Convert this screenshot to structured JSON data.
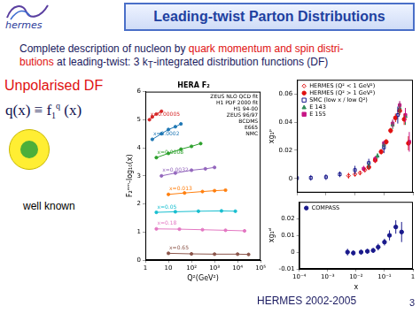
{
  "slide": {
    "logo": "hermes",
    "title": "Leading-twist Parton Distributions",
    "intro": [
      [
        "Complete description of nucleon by ",
        "quark momentum and spin distri-"
      ],
      [
        "butions",
        " at leading-twist: 3 k",
        "T",
        "-integrated distribution functions (DF)"
      ]
    ],
    "section": "Unpolarised DF",
    "formula": [
      "q(x) ≡ f",
      "1",
      "q",
      " (x)"
    ],
    "caption": "well known",
    "footer": "HERMES 2002-2005",
    "page": 3
  },
  "chart_data": [
    {
      "type": "line",
      "title": "HERA F₂",
      "x_label": "Q²(GeV²)",
      "y_label": "F₂ᵉᵐ-log₁₀(x)",
      "log": "x",
      "grid": false,
      "xlim": [
        1,
        100000
      ],
      "xticks": [
        1,
        10,
        {
          "value": 100,
          "label": "10²"
        },
        {
          "value": 1000,
          "label": "10³"
        },
        {
          "value": 10000,
          "label": "10⁴"
        },
        {
          "value": 100000,
          "label": "10⁵"
        }
      ],
      "ylim": [
        0,
        6
      ],
      "yticks": [
        0,
        1,
        2,
        3,
        4,
        5,
        6
      ],
      "annotations": [
        "ZEUS NLO QCD fit",
        "H1 PDF 2000 fit",
        "H1 94-00",
        "ZEUS 96/97",
        "BCDMS",
        "E665",
        "NMC"
      ],
      "series": [
        {
          "name": "x=0.00005",
          "color": "#d62728",
          "marker": "circle",
          "x": [
            1.5,
            2,
            3,
            5
          ],
          "values": [
            5.0,
            5.1,
            5.2,
            5.3
          ]
        },
        {
          "name": "x=0.0002",
          "color": "#1f77b4",
          "marker": "circle",
          "x": [
            2,
            5,
            10,
            20,
            35
          ],
          "values": [
            4.3,
            4.5,
            4.65,
            4.75,
            4.85
          ]
        },
        {
          "name": "x=0.0008",
          "color": "#2ca02c",
          "marker": "circle",
          "x": [
            3,
            10,
            35,
            100,
            250
          ],
          "values": [
            3.65,
            3.8,
            3.95,
            4.05,
            4.15
          ]
        },
        {
          "name": "x=0.0032",
          "color": "#9467bd",
          "marker": "circle",
          "x": [
            5,
            20,
            100,
            400,
            1000
          ],
          "values": [
            3.0,
            3.1,
            3.2,
            3.25,
            3.3
          ]
        },
        {
          "name": "x=0.013",
          "color": "#ff7f0e",
          "marker": "circle",
          "x": [
            10,
            50,
            300,
            1000,
            3000
          ],
          "values": [
            2.34,
            2.39,
            2.44,
            2.47,
            2.49
          ]
        },
        {
          "name": "x=0.05",
          "color": "#17becf",
          "marker": "circle",
          "x": [
            3,
            20,
            200,
            2000,
            8000
          ],
          "values": [
            1.7,
            1.72,
            1.74,
            1.75,
            1.74
          ]
        },
        {
          "name": "x=0.18",
          "color": "#e377c2",
          "marker": "circle",
          "x": [
            3,
            30,
            300,
            3000,
            20000
          ],
          "values": [
            1.11,
            1.1,
            1.08,
            1.06,
            1.04
          ]
        },
        {
          "name": "x=0.65",
          "color": "#8c564b",
          "marker": "circle",
          "x": [
            10,
            100,
            1000,
            10000,
            30000
          ],
          "values": [
            0.24,
            0.22,
            0.21,
            0.21,
            0.2
          ]
        }
      ]
    },
    {
      "type": "scatter",
      "y_label": "xg₁ᵖ",
      "log": "x",
      "grid": false,
      "tick_labels": "y",
      "legend": "upper left",
      "xlim": [
        0.0001,
        1
      ],
      "xticks": [
        {
          "value": 0.0001,
          "label": "10⁻⁴"
        },
        {
          "value": 0.001,
          "label": "10⁻³"
        },
        {
          "value": 0.01,
          "label": "10⁻²"
        },
        {
          "value": 0.1,
          "label": "10⁻¹"
        },
        1
      ],
      "ylim": [
        -0.01,
        0.07
      ],
      "yticks": [
        0,
        0.02,
        0.04,
        0.06
      ],
      "series": [
        {
          "name": "HERMES (Q² < 1 GeV²)",
          "color": "#e01010",
          "marker": "diamond_open",
          "x": [
            0.006,
            0.01,
            0.015,
            0.022
          ],
          "values": [
            0.002,
            0.003,
            0.004,
            0.006
          ],
          "errors": [
            0.002,
            0.0015,
            0.0015,
            0.0015
          ]
        },
        {
          "name": "HERMES (Q² > 1 GeV²)",
          "color": "#e01010",
          "marker": "circle",
          "x": [
            0.03,
            0.05,
            0.08,
            0.12,
            0.17,
            0.25,
            0.35,
            0.5,
            0.7
          ],
          "values": [
            0.008,
            0.013,
            0.019,
            0.026,
            0.034,
            0.043,
            0.048,
            0.042,
            0.025
          ],
          "errors": [
            0.002,
            0.002,
            0.002,
            0.002,
            0.002,
            0.003,
            0.003,
            0.004,
            0.005
          ]
        },
        {
          "name": "SMC (low x / low Q²)",
          "color": "#1a1a8c",
          "marker": "square_open",
          "x": [
            0.0001,
            0.0003,
            0.001,
            0.003,
            0.01,
            0.03,
            0.1,
            0.3
          ],
          "values": [
            0.0003,
            0.0005,
            0.001,
            0.003,
            0.006,
            0.011,
            0.022,
            0.045
          ],
          "errors": [
            0.002,
            0.002,
            0.002,
            0.002,
            0.003,
            0.003,
            0.004,
            0.006
          ]
        },
        {
          "name": "E 143",
          "color": "#2e8b57",
          "marker": "triangle",
          "x": [
            0.03,
            0.06,
            0.1,
            0.2,
            0.35,
            0.55
          ],
          "values": [
            0.009,
            0.016,
            0.024,
            0.038,
            0.05,
            0.044
          ],
          "errors": [
            0.002,
            0.002,
            0.002,
            0.003,
            0.004,
            0.006
          ]
        },
        {
          "name": "E 155",
          "color": "#c71585",
          "marker": "square",
          "x": [
            0.02,
            0.05,
            0.1,
            0.2,
            0.35,
            0.55,
            0.75
          ],
          "values": [
            0.007,
            0.014,
            0.025,
            0.039,
            0.052,
            0.045,
            0.026
          ],
          "errors": [
            0.002,
            0.002,
            0.002,
            0.003,
            0.003,
            0.005,
            0.007
          ]
        }
      ]
    },
    {
      "type": "scatter",
      "x_label": "x",
      "y_label": "xg₁ᵈ",
      "log": "x",
      "grid": false,
      "legend": "upper left",
      "xlim": [
        0.0001,
        1
      ],
      "xticks": [
        {
          "value": 0.0001,
          "label": "10⁻⁴"
        },
        {
          "value": 0.001,
          "label": "10⁻³"
        },
        {
          "value": 0.01,
          "label": "10⁻²"
        },
        {
          "value": 0.1,
          "label": "10⁻¹"
        },
        1
      ],
      "ylim": [
        -0.01,
        0.03
      ],
      "yticks": [
        -0.01,
        0,
        0.01,
        0.02
      ],
      "series": [
        {
          "name": "COMPASS",
          "color": "#1a1a8c",
          "marker": "circle",
          "x": [
            0.005,
            0.008,
            0.015,
            0.025,
            0.04,
            0.06,
            0.1,
            0.15,
            0.25,
            0.4
          ],
          "values": [
            0,
            -0.0005,
            0,
            0.0005,
            0.001,
            0.003,
            0.006,
            0.01,
            0.015,
            0.012
          ],
          "errors": [
            0.002,
            0.0015,
            0.0015,
            0.0015,
            0.0015,
            0.002,
            0.002,
            0.003,
            0.004,
            0.006
          ]
        }
      ]
    }
  ]
}
